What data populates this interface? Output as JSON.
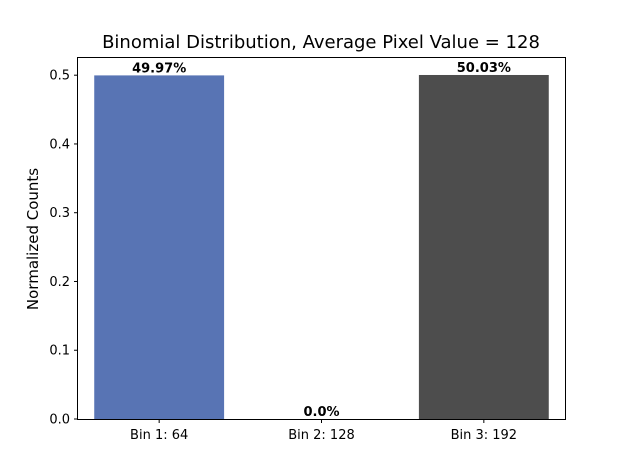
{
  "chart_data": {
    "type": "bar",
    "title": "Binomial Distribution, Average Pixel Value = 128",
    "xlabel": "",
    "ylabel": "Normalized Counts",
    "categories": [
      "Bin 1: 64",
      "Bin 2: 128",
      "Bin 3: 192"
    ],
    "values": [
      0.4997,
      0.0,
      0.5003
    ],
    "data_labels": [
      "49.97%",
      "0.0%",
      "50.03%"
    ],
    "colors": [
      "#5874b4",
      "#4d4d4d",
      "#4d4d4d"
    ],
    "ylim": [
      0,
      0.525
    ],
    "yticks": [
      0.0,
      0.1,
      0.2,
      0.3,
      0.4,
      0.5
    ],
    "ytick_labels": [
      "0.0",
      "0.1",
      "0.2",
      "0.3",
      "0.4",
      "0.5"
    ],
    "grid": false,
    "legend": "none"
  }
}
